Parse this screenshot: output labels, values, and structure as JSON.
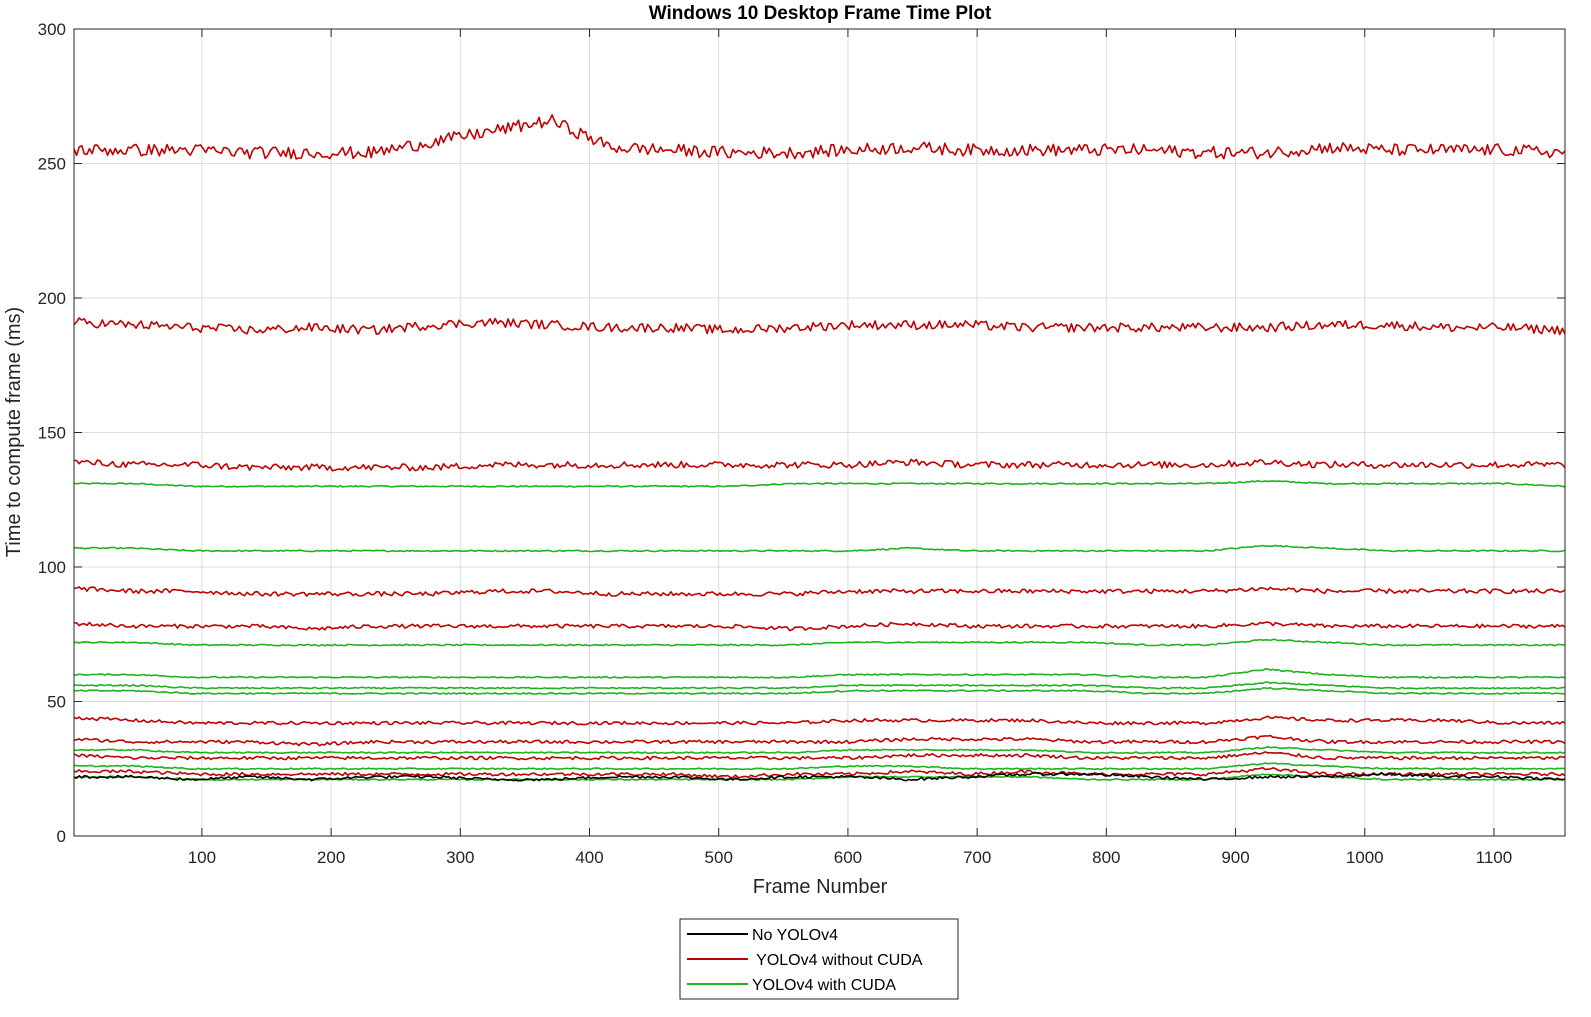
{
  "chart_data": {
    "type": "line",
    "title": "Windows 10 Desktop Frame Time Plot",
    "xlabel": "Frame Number",
    "ylabel": "Time to compute frame (ms)",
    "xlim": [
      1,
      1155
    ],
    "ylim": [
      0,
      300
    ],
    "x_ticks": [
      100,
      200,
      300,
      400,
      500,
      600,
      700,
      800,
      900,
      1000,
      1100
    ],
    "y_ticks": [
      0,
      50,
      100,
      150,
      200,
      250,
      300
    ],
    "grid": true,
    "legend_position": "bottom-center",
    "series": [
      {
        "name": "No YOLOv4",
        "color": "#000000",
        "traces": [
          {
            "values": [
              22,
              22,
              21,
              22,
              21,
              22,
              22,
              21,
              21,
              22,
              22,
              21,
              22,
              22,
              21,
              22,
              23,
              23,
              22,
              21,
              22,
              22,
              23,
              22,
              22,
              21
            ]
          }
        ]
      },
      {
        "name": " YOLOv4 without CUDA",
        "color": "#c00000",
        "traces": [
          {
            "values": [
              255,
              255,
              255,
              254,
              254,
              254,
              258,
              262,
              266,
              256,
              255,
              254,
              254,
              255,
              256,
              255,
              255,
              255,
              255,
              254,
              254,
              256,
              255,
              255,
              255,
              254
            ]
          },
          {
            "values": [
              191,
              190,
              189,
              188,
              189,
              188,
              190,
              191,
              190,
              189,
              189,
              188,
              189,
              190,
              190,
              190,
              189,
              189,
              189,
              189,
              189,
              190,
              190,
              189,
              189,
              188
            ]
          },
          {
            "values": [
              139,
              138,
              138,
              137,
              137,
              137,
              137,
              138,
              138,
              138,
              138,
              138,
              138,
              138,
              139,
              138,
              138,
              138,
              138,
              138,
              139,
              138,
              138,
              138,
              138,
              138
            ]
          },
          {
            "values": [
              92,
              91,
              91,
              90,
              90,
              90,
              90,
              91,
              91,
              90,
              90,
              90,
              90,
              91,
              91,
              91,
              91,
              91,
              91,
              91,
              92,
              91,
              91,
              91,
              91,
              91
            ]
          },
          {
            "values": [
              79,
              78,
              78,
              78,
              77,
              78,
              78,
              78,
              78,
              78,
              78,
              78,
              77,
              78,
              79,
              78,
              78,
              78,
              78,
              78,
              79,
              78,
              78,
              78,
              78,
              78
            ]
          },
          {
            "values": [
              44,
              43,
              42,
              42,
              42,
              42,
              42,
              42,
              42,
              42,
              42,
              42,
              42,
              43,
              43,
              43,
              43,
              42,
              42,
              42,
              44,
              43,
              43,
              43,
              42,
              42
            ]
          },
          {
            "values": [
              36,
              35,
              35,
              35,
              34,
              35,
              35,
              35,
              35,
              35,
              35,
              35,
              35,
              35,
              36,
              36,
              36,
              35,
              35,
              35,
              37,
              35,
              35,
              35,
              35,
              35
            ]
          },
          {
            "values": [
              30,
              29,
              29,
              29,
              29,
              29,
              29,
              29,
              29,
              29,
              29,
              29,
              29,
              29,
              30,
              30,
              30,
              29,
              29,
              29,
              31,
              29,
              29,
              29,
              29,
              29
            ]
          },
          {
            "values": [
              24,
              24,
              23,
              23,
              23,
              23,
              23,
              23,
              23,
              23,
              23,
              22,
              23,
              23,
              24,
              23,
              24,
              23,
              23,
              23,
              25,
              23,
              23,
              23,
              23,
              23
            ]
          }
        ]
      },
      {
        "name": "YOLOv4 with CUDA",
        "color": "#1fb31f",
        "traces": [
          {
            "values": [
              131,
              131,
              130,
              130,
              130,
              130,
              130,
              130,
              130,
              130,
              130,
              130,
              131,
              131,
              131,
              131,
              131,
              131,
              131,
              131,
              132,
              131,
              131,
              131,
              131,
              130
            ]
          },
          {
            "values": [
              107,
              107,
              106,
              106,
              106,
              106,
              106,
              106,
              106,
              106,
              106,
              106,
              106,
              106,
              107,
              106,
              106,
              106,
              106,
              106,
              108,
              107,
              106,
              106,
              106,
              106
            ]
          },
          {
            "values": [
              72,
              72,
              71,
              71,
              71,
              71,
              71,
              71,
              71,
              71,
              71,
              71,
              71,
              72,
              72,
              72,
              72,
              72,
              71,
              71,
              73,
              72,
              71,
              71,
              71,
              71
            ]
          },
          {
            "values": [
              60,
              60,
              59,
              59,
              59,
              59,
              59,
              59,
              59,
              59,
              59,
              59,
              59,
              60,
              60,
              60,
              60,
              60,
              59,
              59,
              62,
              60,
              59,
              59,
              59,
              59
            ]
          },
          {
            "values": [
              56,
              56,
              55,
              55,
              55,
              55,
              55,
              55,
              55,
              55,
              55,
              55,
              55,
              56,
              56,
              56,
              56,
              56,
              55,
              55,
              57,
              56,
              55,
              55,
              55,
              55
            ]
          },
          {
            "values": [
              54,
              54,
              53,
              53,
              53,
              53,
              53,
              53,
              53,
              53,
              53,
              53,
              53,
              54,
              54,
              54,
              54,
              54,
              53,
              53,
              55,
              54,
              53,
              53,
              53,
              53
            ]
          },
          {
            "values": [
              32,
              32,
              31,
              31,
              31,
              31,
              31,
              31,
              31,
              31,
              31,
              31,
              31,
              32,
              32,
              32,
              32,
              31,
              31,
              31,
              33,
              32,
              31,
              31,
              31,
              31
            ]
          },
          {
            "values": [
              26,
              26,
              25,
              25,
              25,
              25,
              25,
              25,
              25,
              25,
              25,
              25,
              25,
              26,
              26,
              25,
              25,
              25,
              25,
              25,
              27,
              26,
              25,
              25,
              25,
              25
            ]
          },
          {
            "values": [
              22,
              22,
              21,
              21,
              21,
              21,
              21,
              21,
              21,
              21,
              21,
              21,
              21,
              22,
              22,
              22,
              22,
              21,
              21,
              21,
              23,
              22,
              21,
              21,
              21,
              21
            ]
          }
        ]
      }
    ]
  }
}
